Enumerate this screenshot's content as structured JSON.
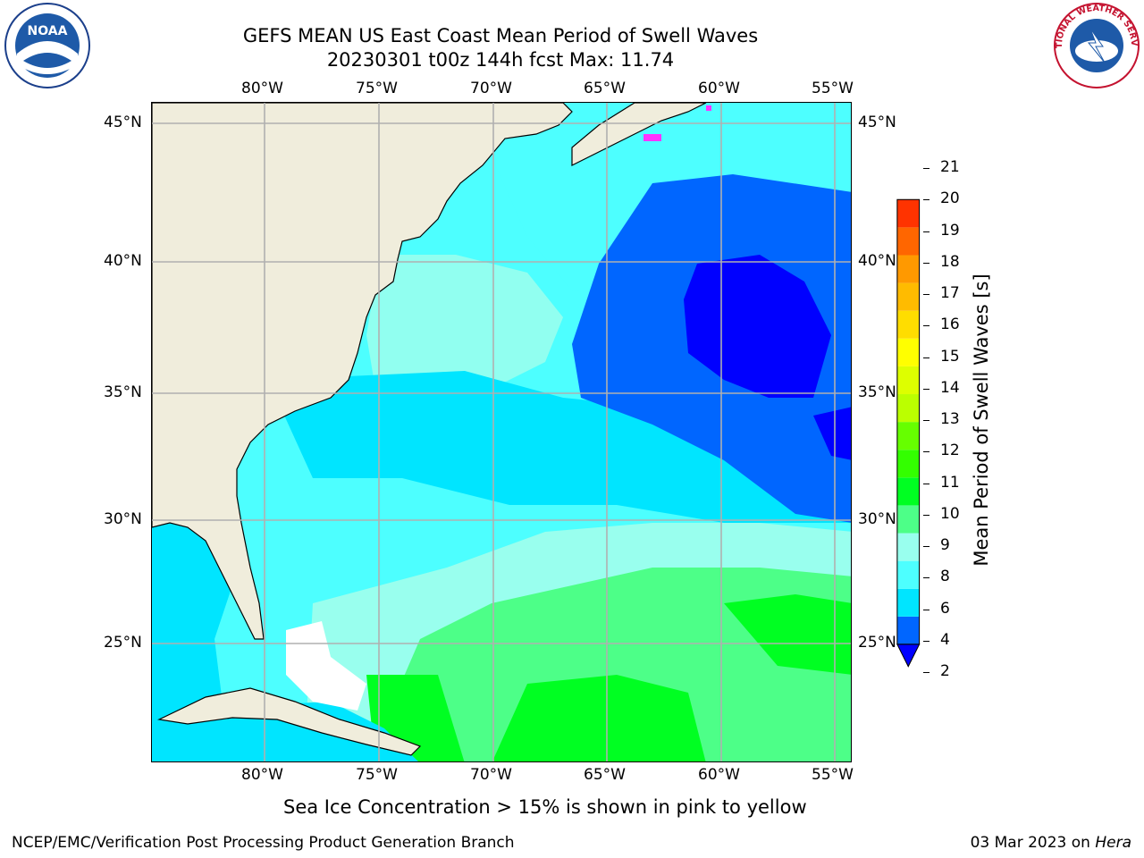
{
  "header": {
    "title_line1": "GEFS MEAN US East Coast Mean Period of Swell Waves",
    "title_line2": "20230301 t00z 144h fcst   Max: 11.74"
  },
  "logos": {
    "left": "NOAA",
    "right": "NATIONAL WEATHER SERVICE"
  },
  "map": {
    "lon_labels": [
      "80°W",
      "75°W",
      "70°W",
      "65°W",
      "60°W",
      "55°W"
    ],
    "lat_labels": [
      "45°N",
      "40°N",
      "35°N",
      "30°N",
      "25°N"
    ],
    "land_color": "#f0eddc",
    "grid_color": "#b0b0b0"
  },
  "colorbar": {
    "label": "Mean Period of Swell Waves [s]",
    "ticks": [
      "2",
      "4",
      "6",
      "8",
      "9",
      "10",
      "11",
      "12",
      "13",
      "14",
      "15",
      "16",
      "17",
      "18",
      "19",
      "20",
      "21"
    ],
    "colors": [
      "#0066ff",
      "#00e5ff",
      "#4dffff",
      "#99ffee",
      "#4dff88",
      "#00ff22",
      "#33ff00",
      "#66ff00",
      "#bbff00",
      "#ddff00",
      "#ffff00",
      "#ffdd00",
      "#ffbb00",
      "#ff9900",
      "#ff6600",
      "#ff3300",
      "#ff0000"
    ],
    "extend_color": "#0000ff"
  },
  "notes": {
    "sea_ice": "Sea Ice Concentration > 15% is shown in pink to yellow"
  },
  "footer": {
    "left": "NCEP/EMC/Verification Post Processing Product Generation Branch",
    "right_date": "03 Mar 2023 on ",
    "right_host": "Hera"
  }
}
